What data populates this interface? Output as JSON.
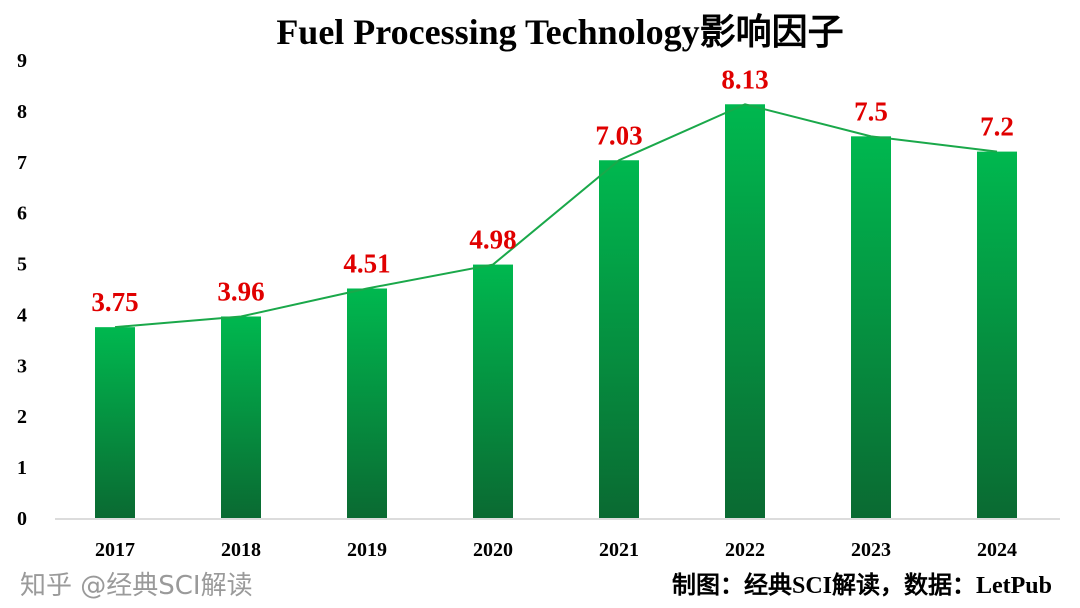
{
  "chart_data": {
    "type": "bar",
    "title": "Fuel Processing Technology影响因子",
    "categories": [
      "2017",
      "2018",
      "2019",
      "2020",
      "2021",
      "2022",
      "2023",
      "2024"
    ],
    "values": [
      3.75,
      3.96,
      4.51,
      4.98,
      7.03,
      8.13,
      7.5,
      7.2
    ],
    "data_labels": [
      "3.75",
      "3.96",
      "4.51",
      "4.98",
      "7.03",
      "8.13",
      "7.5",
      "7.2"
    ],
    "overlay_line": true,
    "xlabel": "",
    "ylabel": "",
    "ylim": [
      0,
      9
    ],
    "yticks": [
      "0",
      "1",
      "2",
      "3",
      "4",
      "5",
      "6",
      "7",
      "8",
      "9"
    ],
    "grid": false,
    "colors": {
      "bar_top": "#00b84f",
      "bar_bottom": "#0a6a32",
      "line": "#1aa84a",
      "data_label": "#e00000"
    }
  },
  "credit": "制图：经典SCI解读，数据：LetPub",
  "watermark": "知乎 @经典SCI解读"
}
